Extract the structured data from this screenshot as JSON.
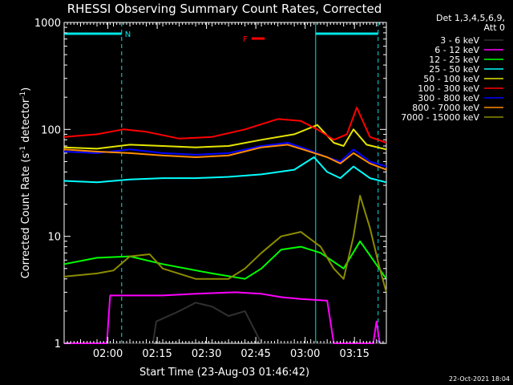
{
  "chart_data": {
    "type": "line",
    "title": "RHESSI Observing Summary Count Rates, Corrected",
    "xlabel": "Start Time (23-Aug-03 01:46:42)",
    "ylabel_main": "Corrected Count Rate (s",
    "ylabel_sup1": "-1",
    "ylabel_mid": " detector",
    "ylabel_sup2": "-1",
    "ylabel_end": ")",
    "y_scale": "log",
    "ylim": [
      1,
      1000
    ],
    "y_ticks": [
      "1",
      "10",
      "100",
      "1000"
    ],
    "x_ticks": [
      "02:00",
      "02:15",
      "02:30",
      "02:45",
      "03:00",
      "03:15"
    ],
    "x_tick_minutes": [
      13.3,
      28.3,
      43.3,
      58.3,
      73.3,
      88.3
    ],
    "xlim_minutes": [
      0,
      98
    ],
    "legend_header": [
      "Det 1,3,4,5,6,9,",
      "Att 0"
    ],
    "legend_placement": "right",
    "flags": [
      {
        "label": "N",
        "start": 0,
        "end": 17.5,
        "color": "#00e5e5"
      },
      {
        "label": "F",
        "start": 57,
        "end": 61,
        "color": "#ff0000"
      },
      {
        "label": "",
        "start": 76.5,
        "end": 95.5,
        "color": "#00e5e5"
      }
    ],
    "markers": [
      {
        "minute": 17.5,
        "style": "dashed"
      },
      {
        "minute": 76.5,
        "style": "solid"
      },
      {
        "minute": 95.5,
        "style": "dashed"
      }
    ],
    "series": [
      {
        "name": "3 - 6 keV",
        "color": "#000000",
        "points": [
          [
            0,
            1
          ],
          [
            27,
            1
          ],
          [
            28,
            1.6
          ],
          [
            35,
            2
          ],
          [
            40,
            2.4
          ],
          [
            45,
            2.2
          ],
          [
            50,
            1.8
          ],
          [
            55,
            2
          ],
          [
            60,
            1
          ],
          [
            98,
            1
          ]
        ]
      },
      {
        "name": "6 - 12 keV",
        "color": "#ff00ff",
        "points": [
          [
            0,
            1
          ],
          [
            13,
            1
          ],
          [
            14,
            2.8
          ],
          [
            30,
            2.8
          ],
          [
            40,
            2.9
          ],
          [
            52,
            3.0
          ],
          [
            60,
            2.9
          ],
          [
            66,
            2.7
          ],
          [
            72,
            2.6
          ],
          [
            80,
            2.5
          ],
          [
            82,
            1
          ],
          [
            94,
            1
          ],
          [
            95,
            1.6
          ],
          [
            96,
            1
          ]
        ]
      },
      {
        "name": "12 - 25 keV",
        "color": "#00ff00",
        "points": [
          [
            0,
            5.5
          ],
          [
            10,
            6.3
          ],
          [
            20,
            6.5
          ],
          [
            30,
            5.5
          ],
          [
            45,
            4.5
          ],
          [
            55,
            4
          ],
          [
            60,
            5
          ],
          [
            66,
            7.5
          ],
          [
            72,
            8
          ],
          [
            78,
            7
          ],
          [
            85,
            5
          ],
          [
            90,
            9
          ],
          [
            94,
            6
          ],
          [
            98,
            4
          ]
        ]
      },
      {
        "name": "25 - 50 keV",
        "color": "#00ffff",
        "points": [
          [
            0,
            33
          ],
          [
            10,
            32
          ],
          [
            20,
            34
          ],
          [
            30,
            35
          ],
          [
            40,
            35
          ],
          [
            50,
            36
          ],
          [
            60,
            38
          ],
          [
            70,
            42
          ],
          [
            76,
            55
          ],
          [
            80,
            40
          ],
          [
            84,
            35
          ],
          [
            88,
            45
          ],
          [
            93,
            35
          ],
          [
            98,
            32
          ]
        ]
      },
      {
        "name": "50 - 100 keV",
        "color": "#e5e500",
        "points": [
          [
            0,
            68
          ],
          [
            10,
            66
          ],
          [
            20,
            72
          ],
          [
            30,
            70
          ],
          [
            40,
            68
          ],
          [
            50,
            70
          ],
          [
            60,
            80
          ],
          [
            70,
            90
          ],
          [
            77,
            110
          ],
          [
            82,
            75
          ],
          [
            85,
            70
          ],
          [
            88,
            100
          ],
          [
            92,
            72
          ],
          [
            98,
            65
          ]
        ]
      },
      {
        "name": "100 - 300 keV",
        "color": "#ff0000",
        "points": [
          [
            0,
            85
          ],
          [
            10,
            90
          ],
          [
            18,
            100
          ],
          [
            25,
            95
          ],
          [
            35,
            82
          ],
          [
            45,
            85
          ],
          [
            55,
            100
          ],
          [
            65,
            125
          ],
          [
            72,
            120
          ],
          [
            77,
            100
          ],
          [
            82,
            80
          ],
          [
            86,
            90
          ],
          [
            89,
            160
          ],
          [
            93,
            85
          ],
          [
            98,
            75
          ]
        ]
      },
      {
        "name": "300 - 800 keV",
        "color": "#0000ff",
        "points": [
          [
            0,
            62
          ],
          [
            10,
            60
          ],
          [
            20,
            65
          ],
          [
            30,
            60
          ],
          [
            40,
            58
          ],
          [
            50,
            60
          ],
          [
            60,
            70
          ],
          [
            68,
            75
          ],
          [
            74,
            65
          ],
          [
            80,
            55
          ],
          [
            84,
            50
          ],
          [
            88,
            65
          ],
          [
            93,
            50
          ],
          [
            98,
            45
          ]
        ]
      },
      {
        "name": "800 - 7000 keV",
        "color": "#ff8c00",
        "points": [
          [
            0,
            65
          ],
          [
            10,
            62
          ],
          [
            20,
            60
          ],
          [
            30,
            57
          ],
          [
            40,
            55
          ],
          [
            50,
            57
          ],
          [
            60,
            68
          ],
          [
            68,
            72
          ],
          [
            74,
            63
          ],
          [
            80,
            55
          ],
          [
            84,
            48
          ],
          [
            88,
            60
          ],
          [
            93,
            48
          ],
          [
            98,
            42
          ]
        ]
      },
      {
        "name": "7000 - 15000 keV",
        "color": "#8c8c00",
        "points": [
          [
            0,
            4.2
          ],
          [
            10,
            4.5
          ],
          [
            15,
            4.8
          ],
          [
            20,
            6.5
          ],
          [
            26,
            6.8
          ],
          [
            30,
            5
          ],
          [
            40,
            4
          ],
          [
            50,
            4
          ],
          [
            55,
            5
          ],
          [
            60,
            7
          ],
          [
            66,
            10
          ],
          [
            72,
            11
          ],
          [
            78,
            8
          ],
          [
            82,
            5
          ],
          [
            85,
            4
          ],
          [
            88,
            10
          ],
          [
            90,
            24
          ],
          [
            93,
            12
          ],
          [
            96,
            5
          ],
          [
            98,
            3
          ]
        ]
      }
    ]
  },
  "footer": {
    "timestamp": "22-Oct-2021 18:04"
  }
}
